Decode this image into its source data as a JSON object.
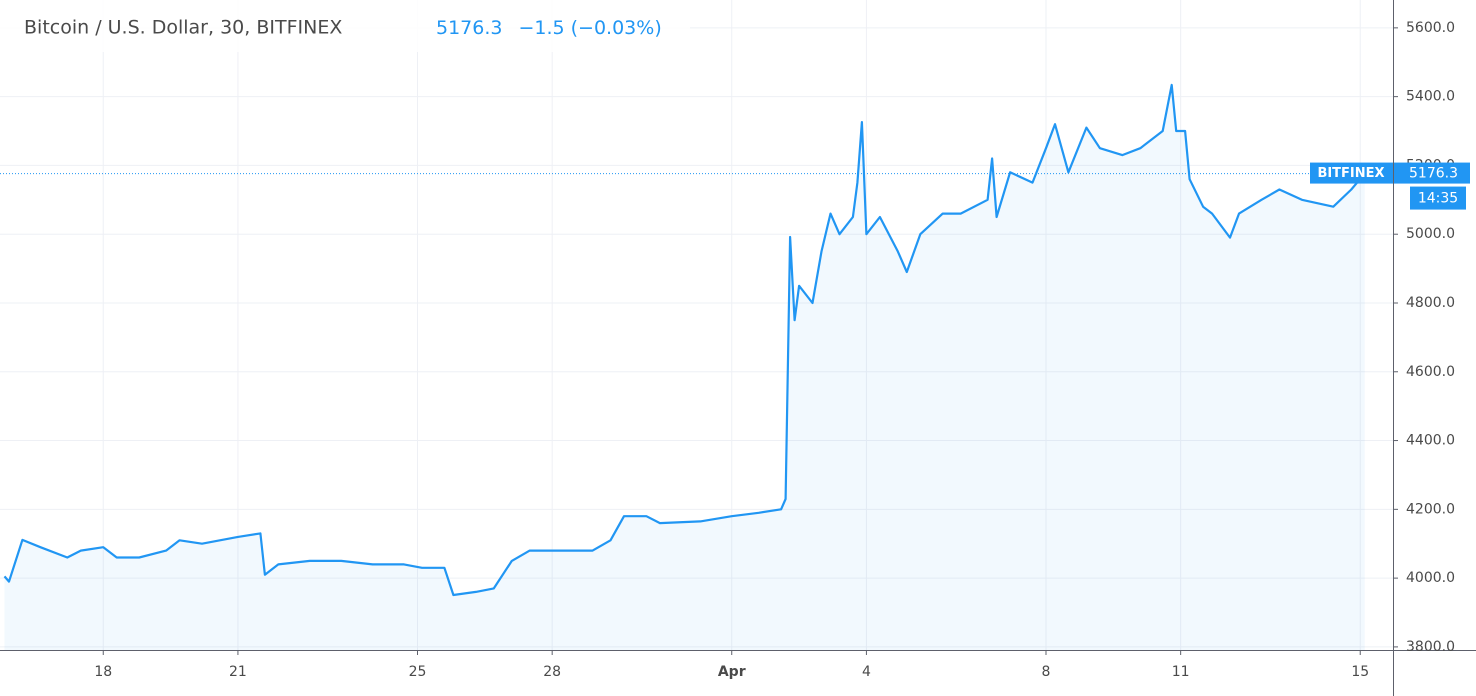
{
  "chart_data": {
    "type": "area",
    "title": "Bitcoin / U.S. Dollar, 30, BITFINEX",
    "change": {
      "value": -1.5,
      "label": "−1.5"
    },
    "change_pct": {
      "value": -0.03,
      "label": "(−0.03%)"
    },
    "series_tag": "BITFINEX",
    "countdown": "14:35",
    "color": "#2196f3",
    "x": [
      15.8,
      15.9,
      16.2,
      16.6,
      17.2,
      17.5,
      18.0,
      18.3,
      18.8,
      19.4,
      19.7,
      20.2,
      21.0,
      21.5,
      21.6,
      21.9,
      22.6,
      23.3,
      24.0,
      24.7,
      25.1,
      25.6,
      25.8,
      26.3,
      26.7,
      27.1,
      27.5,
      28.2,
      28.9,
      29.3,
      29.6,
      30.1,
      30.4,
      31.3,
      32.0,
      32.6,
      33.1,
      33.2,
      33.3,
      33.4,
      33.5,
      33.8,
      34.0,
      34.2,
      34.4,
      34.7,
      34.8,
      34.9,
      35.0,
      35.3,
      35.7,
      35.9,
      36.2,
      36.7,
      37.1,
      37.7,
      37.8,
      37.9,
      38.2,
      38.7,
      39.0,
      39.2,
      39.5,
      39.9,
      40.2,
      40.7,
      41.1,
      41.6,
      41.8,
      41.9,
      42.1,
      42.2,
      42.5,
      42.7,
      43.1,
      43.3,
      43.8,
      44.2,
      44.7,
      45.4,
      45.8,
      46.1
    ],
    "values": [
      4005,
      3990,
      4111,
      4090,
      4060,
      4080,
      4090,
      4060,
      4060,
      4080,
      4110,
      4100,
      4120,
      4130,
      4010,
      4040,
      4050,
      4050,
      4040,
      4040,
      4030,
      4030,
      3951,
      3960,
      3970,
      4050,
      4080,
      4080,
      4080,
      4110,
      4180,
      4180,
      4160,
      4165,
      4180,
      4190,
      4200,
      4230,
      4992,
      4750,
      4850,
      4800,
      4950,
      5060,
      5000,
      5050,
      5150,
      5326,
      5000,
      5050,
      4950,
      4890,
      5000,
      5060,
      5060,
      5100,
      5220,
      5050,
      5180,
      5150,
      5250,
      5320,
      5180,
      5310,
      5250,
      5230,
      5250,
      5300,
      5434,
      5300,
      5300,
      5160,
      5080,
      5060,
      4990,
      5060,
      5100,
      5130,
      5100,
      5080,
      5130,
      5176.3
    ],
    "xlim": [
      15.7,
      46.73
    ],
    "xticks": [
      18,
      21,
      25,
      28,
      {
        "value": 32,
        "label": "Apr"
      },
      {
        "value": 35,
        "label": "4"
      },
      {
        "value": 39,
        "label": "8"
      },
      {
        "value": 42,
        "label": "11"
      },
      {
        "value": 46,
        "label": "15"
      }
    ],
    "ylim": [
      3791,
      5681
    ],
    "yticks": [
      {
        "value": 3800,
        "label": "3800.0"
      },
      {
        "value": 4000,
        "label": "4000.0"
      },
      {
        "value": 4200,
        "label": "4200.0"
      },
      {
        "value": 4400,
        "label": "4400.0"
      },
      {
        "value": 4600,
        "label": "4600.0"
      },
      {
        "value": 4800,
        "label": "4800.0"
      },
      {
        "value": 5000,
        "label": "5000.0"
      },
      {
        "value": 5200,
        "label": "5200.0"
      },
      {
        "value": 5400,
        "label": "5400.0"
      },
      {
        "value": 5600,
        "label": "5600.0"
      }
    ],
    "grid": true
  }
}
